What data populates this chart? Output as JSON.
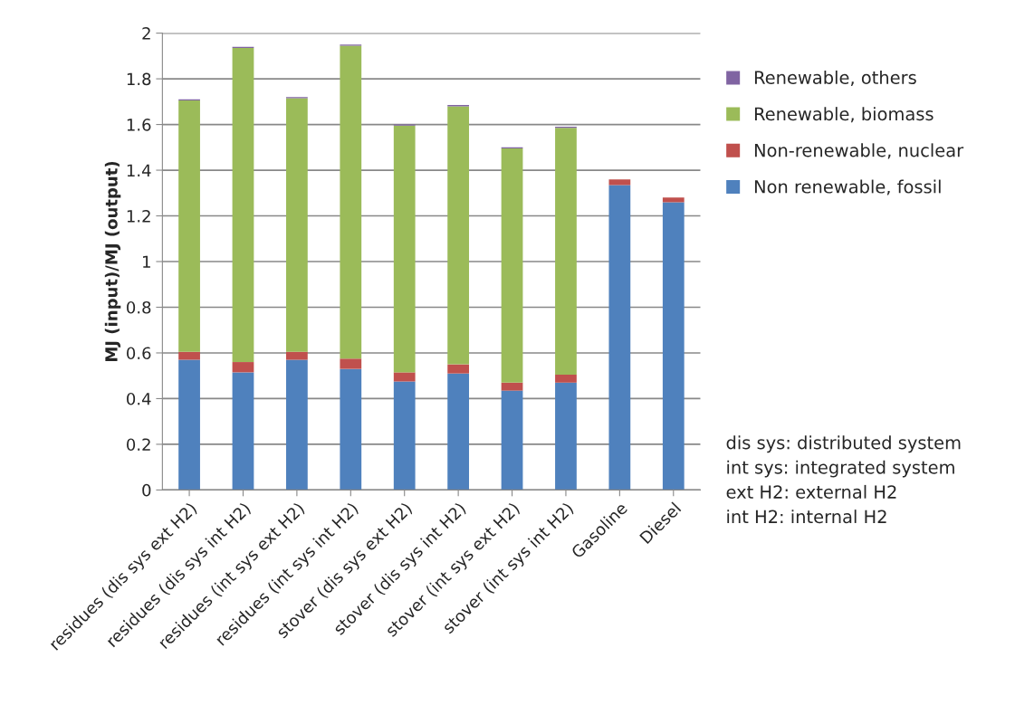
{
  "chart_data": {
    "type": "bar",
    "stacked": true,
    "ylabel": "MJ (input)/MJ (output)",
    "categories": [
      "residues (dis sys ext H2)",
      "residues (dis sys int H2)",
      "residues (int sys ext H2)",
      "residues (int sys int H2)",
      "stover (dis sys ext H2)",
      "stover (dis sys int H2)",
      "stover (int sys ext H2)",
      "stover (int sys int H2)",
      "Gasoline",
      "Diesel"
    ],
    "series": [
      {
        "name": "Non renewable, fossil",
        "color": "#4f81bd",
        "values": [
          0.57,
          0.515,
          0.57,
          0.53,
          0.475,
          0.51,
          0.435,
          0.47,
          1.335,
          1.26
        ]
      },
      {
        "name": "Non-renewable, nuclear",
        "color": "#c0504d",
        "values": [
          0.035,
          0.045,
          0.035,
          0.045,
          0.04,
          0.04,
          0.035,
          0.035,
          0.025,
          0.02
        ]
      },
      {
        "name": "Renewable, biomass",
        "color": "#9bbb59",
        "values": [
          1.1,
          1.375,
          1.11,
          1.37,
          1.08,
          1.13,
          1.025,
          1.08,
          null,
          null
        ]
      },
      {
        "name": "Renewable, others",
        "color": "#8064a2",
        "values": [
          0.005,
          0.005,
          0.005,
          0.005,
          0.005,
          0.005,
          0.005,
          0.005,
          null,
          null
        ]
      }
    ],
    "ylim": [
      0,
      2
    ],
    "yticks": [
      0,
      {
        "value": 0.2,
        "label": "0.2"
      },
      {
        "value": 0.4,
        "label": "0.4"
      },
      {
        "value": 0.6,
        "label": "0.6"
      },
      {
        "value": 0.8,
        "label": "0.8"
      },
      1,
      {
        "value": 1.2,
        "label": "1.2"
      },
      {
        "value": 1.4,
        "label": "1.4"
      },
      {
        "value": 1.6,
        "label": "1.6"
      },
      {
        "value": 1.8,
        "label": "1.8"
      },
      2
    ],
    "grid": "y",
    "legend": "right",
    "annotations": [
      "dis sys: distributed system",
      "int sys: integrated system",
      "ext H2: external H2",
      "int H2: internal H2"
    ]
  }
}
